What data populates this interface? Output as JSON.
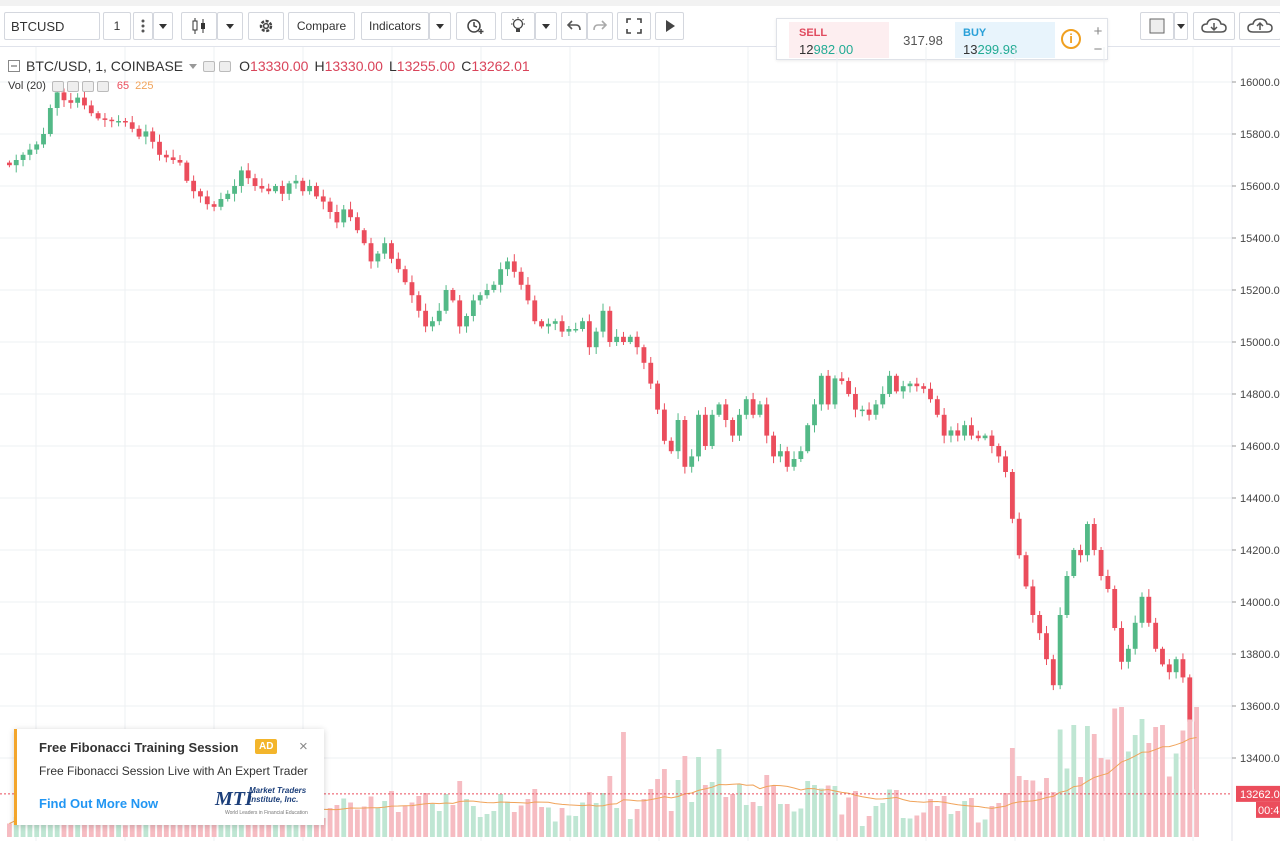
{
  "toolbar": {
    "symbol": "BTCUSD",
    "interval": "1",
    "compare_label": "Compare",
    "indicators_label": "Indicators",
    "icons": [
      "candles-icon",
      "gear-icon",
      "alert-clock-icon",
      "bulb-icon",
      "undo-icon",
      "redo-icon",
      "fullscreen-icon",
      "play-icon",
      "square-icon",
      "cloud-icon",
      "cloud-upload-icon"
    ]
  },
  "trade_panel": {
    "sell_label": "SELL",
    "sell_price_prefix": "12",
    "sell_price_highlight": "982.00",
    "spread": "317.98",
    "buy_label": "BUY",
    "buy_price_prefix": "13",
    "buy_price_highlight": "299.98",
    "info": "i",
    "plus": "+",
    "minus": "−"
  },
  "legend": {
    "title": "BTC/USD, 1, COINBASE",
    "o_label": "O",
    "o_value": "13330.00",
    "h_label": "H",
    "h_value": "13330.00",
    "l_label": "L",
    "l_value": "13255.00",
    "c_label": "C",
    "c_value": "13262.01",
    "vol_label": "Vol (20)",
    "vol_value": "65",
    "vol_ma": "225"
  },
  "ad": {
    "title": "Free Fibonacci Training Session",
    "badge": "AD",
    "close": "×",
    "description": "Free Fibonacci Session Live with An Expert Trader",
    "link": "Find Out More Now",
    "logo_mark": "MTI",
    "logo_name_1": "Market Traders",
    "logo_name_2": "Institute, Inc.",
    "logo_tagline": "World Leaders in Financial Education"
  },
  "colors": {
    "up": "#53b987",
    "down": "#eb4d5c",
    "volume_up": "#bfe6d3",
    "volume_down": "#f6bcc2",
    "volume_ma": "#f0a35a",
    "grid": "#eef0f3",
    "last_price_line": "#eb4d5c"
  },
  "chart_data": {
    "type": "candlestick",
    "symbol": "BTC/USD",
    "interval": "1",
    "exchange": "COINBASE",
    "y_axis_ticks": [
      "16000.00",
      "15800.00",
      "15600.00",
      "15400.00",
      "15200.00",
      "15000.00",
      "14800.00",
      "14600.00",
      "14400.00",
      "14200.00",
      "14000.00",
      "13800.00",
      "13600.00",
      "13400.00"
    ],
    "ylim": [
      13250,
      16060
    ],
    "last_price": "13262.0",
    "last_price_value": 13262.01,
    "countdown": "00:4",
    "close_path": [
      15680,
      15700,
      15720,
      15740,
      15760,
      15800,
      15900,
      15960,
      15930,
      15920,
      15940,
      15910,
      15880,
      15860,
      15855,
      15850,
      15850,
      15845,
      15820,
      15790,
      15810,
      15770,
      15720,
      15710,
      15700,
      15690,
      15620,
      15580,
      15560,
      15530,
      15520,
      15550,
      15570,
      15600,
      15660,
      15630,
      15600,
      15590,
      15580,
      15600,
      15570,
      15610,
      15620,
      15580,
      15600,
      15560,
      15540,
      15500,
      15460,
      15510,
      15480,
      15430,
      15380,
      15310,
      15340,
      15380,
      15320,
      15280,
      15230,
      15180,
      15120,
      15060,
      15080,
      15120,
      15200,
      15160,
      15060,
      15100,
      15160,
      15180,
      15200,
      15220,
      15280,
      15310,
      15270,
      15220,
      15160,
      15080,
      15060,
      15070,
      15080,
      15040,
      15050,
      15050,
      15080,
      14980,
      15040,
      15120,
      15000,
      15020,
      15000,
      15020,
      14980,
      14920,
      14840,
      14740,
      14620,
      14580,
      14700,
      14520,
      14560,
      14720,
      14600,
      14720,
      14760,
      14700,
      14640,
      14720,
      14780,
      14720,
      14760,
      14640,
      14560,
      14580,
      14520,
      14550,
      14580,
      14680,
      14760,
      14870,
      14760,
      14860,
      14850,
      14800,
      14740,
      14740,
      14720,
      14760,
      14800,
      14870,
      14810,
      14830,
      14840,
      14830,
      14820,
      14780,
      14720,
      14640,
      14660,
      14640,
      14680,
      14640,
      14630,
      14640,
      14600,
      14560,
      14500,
      14320,
      14180,
      14060,
      13950,
      13880,
      13780,
      13680,
      13950,
      14100,
      14200,
      14180,
      14300,
      14200,
      14100,
      14050,
      13900,
      13770,
      13820,
      13920,
      14020,
      13920,
      13820,
      13760,
      13730,
      13780,
      13710,
      13540,
      13280
    ],
    "volume_ma_line": "flat low, rising near end"
  }
}
